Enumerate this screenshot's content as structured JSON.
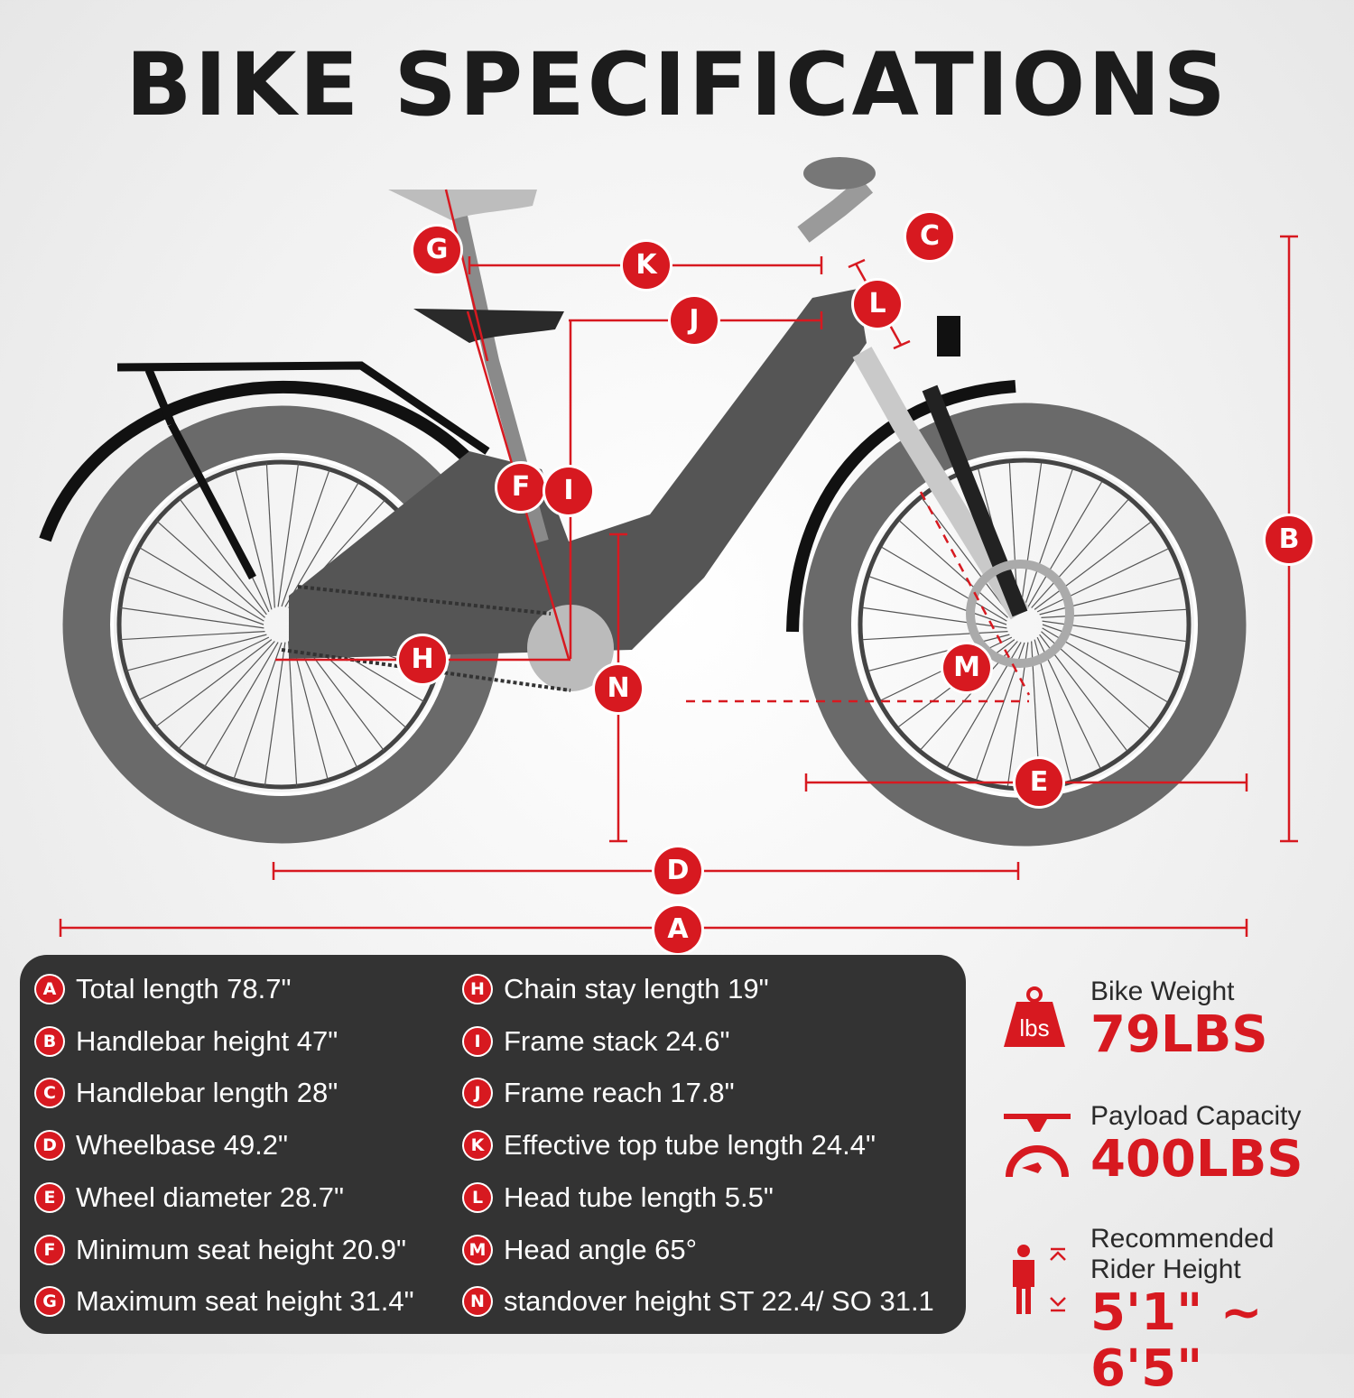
{
  "title": "BIKE SPECIFICATIONS",
  "colors": {
    "accent": "#d71920",
    "panel": "#333333",
    "frame": "#555555",
    "tire": "#6a6a6a"
  },
  "diagram_labels": [
    "A",
    "B",
    "C",
    "D",
    "E",
    "F",
    "G",
    "H",
    "I",
    "J",
    "K",
    "L",
    "M",
    "N"
  ],
  "specs_left": [
    {
      "key": "A",
      "text": "Total length 78.7\""
    },
    {
      "key": "B",
      "text": "Handlebar height 47\""
    },
    {
      "key": "C",
      "text": "Handlebar length 28\""
    },
    {
      "key": "D",
      "text": "Wheelbase 49.2\""
    },
    {
      "key": "E",
      "text": "Wheel diameter 28.7\""
    },
    {
      "key": "F",
      "text": "Minimum seat height 20.9\""
    },
    {
      "key": "G",
      "text": "Maximum seat height 31.4\""
    }
  ],
  "specs_right": [
    {
      "key": "H",
      "text": "Chain stay length 19\""
    },
    {
      "key": "I",
      "text": "Frame stack 24.6\""
    },
    {
      "key": "J",
      "text": "Frame reach 17.8\""
    },
    {
      "key": "K",
      "text": "Effective top tube length 24.4\""
    },
    {
      "key": "L",
      "text": "Head tube length 5.5\""
    },
    {
      "key": "M",
      "text": "Head angle 65°"
    },
    {
      "key": "N",
      "text": "standover height ST 22.4/ SO 31.1"
    }
  ],
  "stats": [
    {
      "icon": "weight-icon",
      "icon_text": "lbs",
      "label": "Bike Weight",
      "value": "79LBS"
    },
    {
      "icon": "payload-scale-icon",
      "label": "Payload Capacity",
      "value": "400LBS"
    },
    {
      "icon": "rider-height-icon",
      "label": "Recommended Rider Height",
      "value": "5'1\" ~ 6'5\""
    }
  ]
}
